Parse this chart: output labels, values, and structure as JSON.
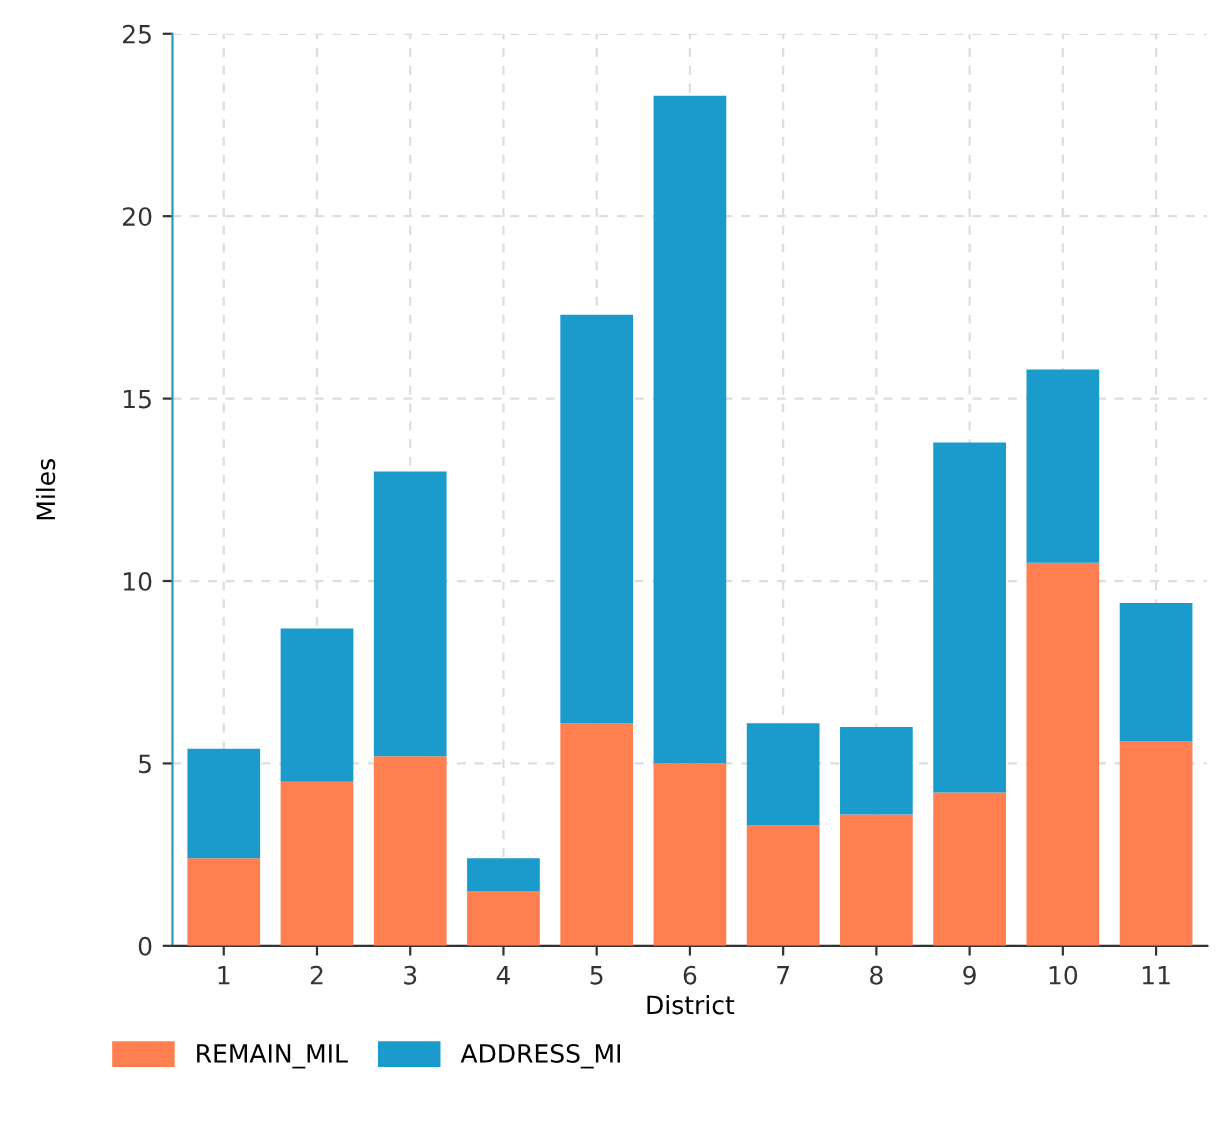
{
  "chart_data": {
    "type": "bar",
    "xlabel": "District",
    "ylabel": "Miles",
    "stacked": true,
    "categories": [
      "1",
      "2",
      "3",
      "4",
      "5",
      "6",
      "7",
      "8",
      "9",
      "10",
      "11"
    ],
    "series": [
      {
        "name": "REMAIN_MIL",
        "color": "#ff7f50",
        "values": [
          2.4,
          4.5,
          5.2,
          1.5,
          6.1,
          5.0,
          3.3,
          3.6,
          4.2,
          10.5,
          5.6
        ]
      },
      {
        "name": "ADDRESS_MI",
        "color": "#1a9bcc",
        "values": [
          3.0,
          4.2,
          7.8,
          0.9,
          11.2,
          18.3,
          2.8,
          2.4,
          9.6,
          5.3,
          3.8
        ]
      }
    ],
    "ylim": [
      0,
      25
    ],
    "yticks": [
      0,
      5,
      10,
      15,
      20,
      25
    ],
    "grid": true,
    "legend": "bottom left"
  }
}
